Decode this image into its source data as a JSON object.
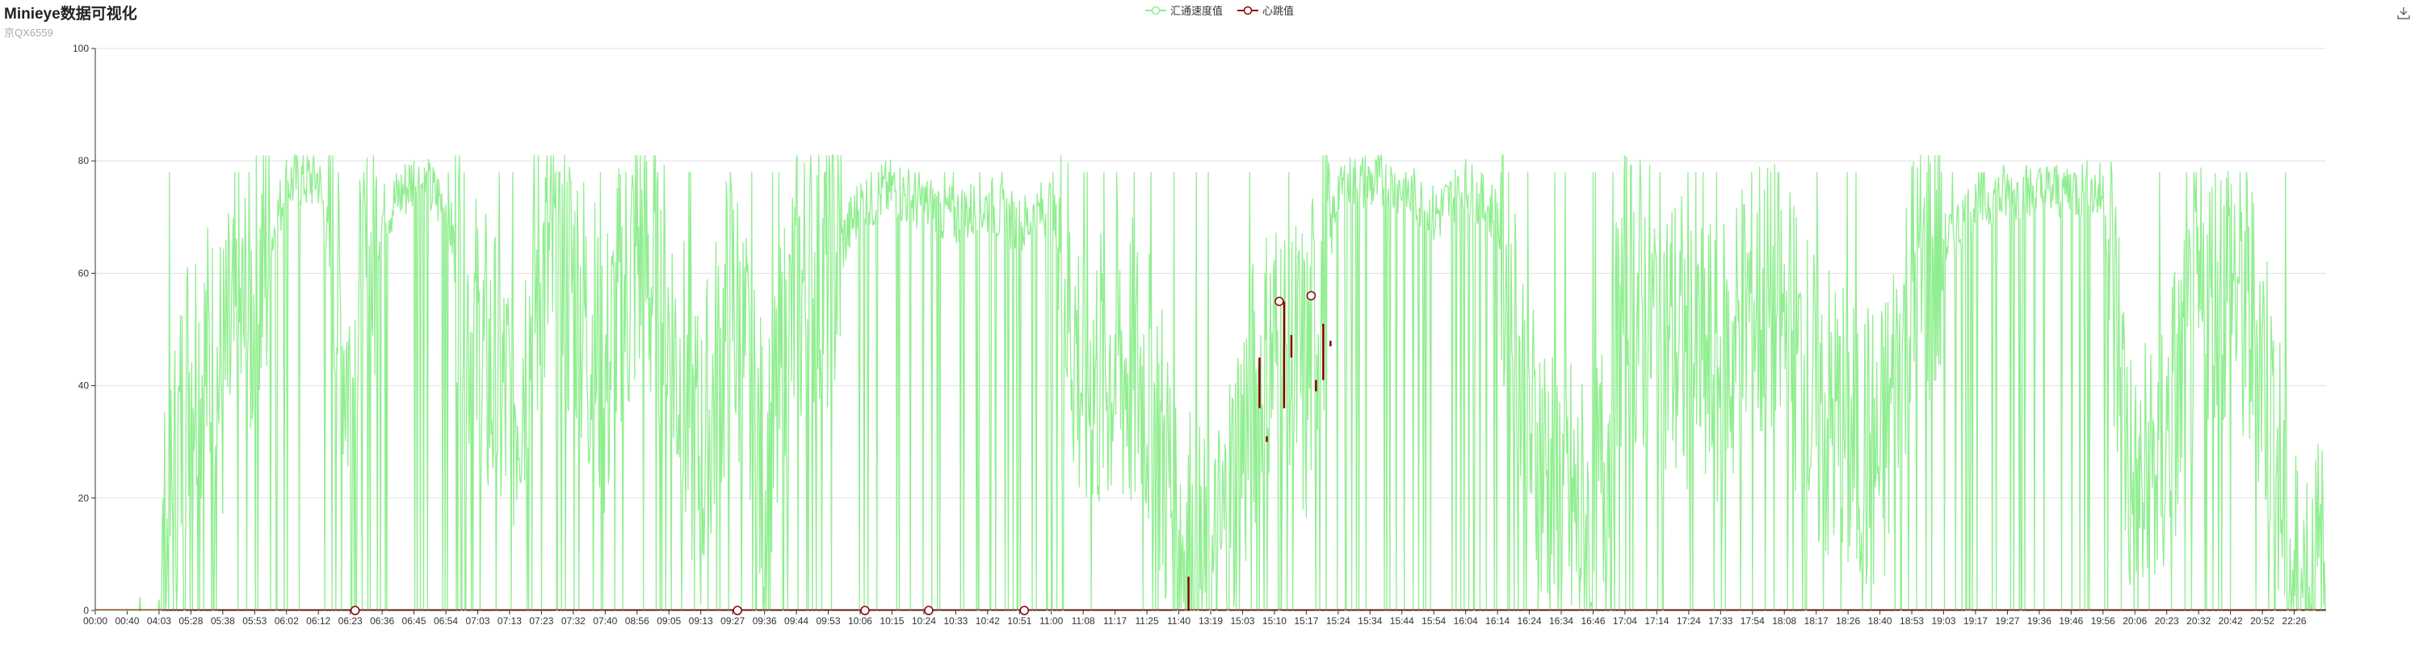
{
  "header": {
    "title": "Minieye数据可视化",
    "subtitle": "京QX6559"
  },
  "legend": {
    "items": [
      {
        "label": "汇通速度值",
        "color": "#90ee90",
        "icon": "hollow-circle-line-icon"
      },
      {
        "label": "心跳值",
        "color": "#8b0000",
        "icon": "hollow-circle-line-icon"
      }
    ]
  },
  "toolbar": {
    "download_icon": "download-icon"
  },
  "chart_data": {
    "type": "line",
    "title": "Minieye数据可视化",
    "subtitle": "京QX6559",
    "ylim": [
      0,
      100
    ],
    "yticks": [
      0,
      20,
      40,
      60,
      80,
      100
    ],
    "grid": true,
    "legend_position": "top-center",
    "xticks": [
      "00:00",
      "00:40",
      "04:03",
      "05:28",
      "05:38",
      "05:53",
      "06:02",
      "06:12",
      "06:23",
      "06:36",
      "06:45",
      "06:54",
      "07:03",
      "07:13",
      "07:23",
      "07:32",
      "07:40",
      "08:56",
      "09:05",
      "09:13",
      "09:27",
      "09:36",
      "09:44",
      "09:53",
      "10:06",
      "10:15",
      "10:24",
      "10:33",
      "10:42",
      "10:51",
      "11:00",
      "11:08",
      "11:17",
      "11:25",
      "11:40",
      "13:19",
      "15:03",
      "15:10",
      "15:17",
      "15:24",
      "15:34",
      "15:44",
      "15:54",
      "16:04",
      "16:14",
      "16:24",
      "16:34",
      "16:46",
      "17:04",
      "17:14",
      "17:24",
      "17:33",
      "17:54",
      "18:08",
      "18:17",
      "18:26",
      "18:40",
      "18:53",
      "19:03",
      "19:17",
      "19:27",
      "19:36",
      "19:46",
      "19:56",
      "20:06",
      "20:23",
      "20:32",
      "20:42",
      "20:52",
      "22:26"
    ],
    "series": [
      {
        "name": "汇通速度值",
        "color": "#90ee90",
        "profile": [
          {
            "x": "00:00",
            "y": 0
          },
          {
            "x": "00:40",
            "y": 0
          },
          {
            "x": "04:03",
            "y": 0
          },
          {
            "x": "05:28",
            "y": 45
          },
          {
            "x": "05:38",
            "y": 40
          },
          {
            "x": "05:53",
            "y": 55
          },
          {
            "x": "06:02",
            "y": 76
          },
          {
            "x": "06:12",
            "y": 77
          },
          {
            "x": "06:23",
            "y": 40
          },
          {
            "x": "06:36",
            "y": 70
          },
          {
            "x": "06:45",
            "y": 77
          },
          {
            "x": "06:54",
            "y": 72
          },
          {
            "x": "07:03",
            "y": 45
          },
          {
            "x": "07:13",
            "y": 35
          },
          {
            "x": "07:23",
            "y": 60
          },
          {
            "x": "07:32",
            "y": 58
          },
          {
            "x": "07:40",
            "y": 40
          },
          {
            "x": "08:56",
            "y": 65
          },
          {
            "x": "09:05",
            "y": 50
          },
          {
            "x": "09:13",
            "y": 25
          },
          {
            "x": "09:27",
            "y": 55
          },
          {
            "x": "09:36",
            "y": 20
          },
          {
            "x": "09:44",
            "y": 55
          },
          {
            "x": "09:53",
            "y": 60
          },
          {
            "x": "10:06",
            "y": 72
          },
          {
            "x": "10:15",
            "y": 75
          },
          {
            "x": "10:24",
            "y": 72
          },
          {
            "x": "10:33",
            "y": 70
          },
          {
            "x": "10:42",
            "y": 72
          },
          {
            "x": "10:51",
            "y": 68
          },
          {
            "x": "11:00",
            "y": 72
          },
          {
            "x": "11:08",
            "y": 40
          },
          {
            "x": "11:17",
            "y": 45
          },
          {
            "x": "11:25",
            "y": 40
          },
          {
            "x": "11:40",
            "y": 15
          },
          {
            "x": "13:19",
            "y": 0
          },
          {
            "x": "15:03",
            "y": 30
          },
          {
            "x": "15:10",
            "y": 45
          },
          {
            "x": "15:17",
            "y": 40
          },
          {
            "x": "15:24",
            "y": 75
          },
          {
            "x": "15:34",
            "y": 76
          },
          {
            "x": "15:44",
            "y": 75
          },
          {
            "x": "15:54",
            "y": 70
          },
          {
            "x": "16:04",
            "y": 75
          },
          {
            "x": "16:14",
            "y": 70
          },
          {
            "x": "16:24",
            "y": 30
          },
          {
            "x": "16:34",
            "y": 20
          },
          {
            "x": "16:46",
            "y": 10
          },
          {
            "x": "17:04",
            "y": 55
          },
          {
            "x": "17:14",
            "y": 50
          },
          {
            "x": "17:24",
            "y": 45
          },
          {
            "x": "17:33",
            "y": 40
          },
          {
            "x": "17:54",
            "y": 55
          },
          {
            "x": "18:08",
            "y": 50
          },
          {
            "x": "18:17",
            "y": 35
          },
          {
            "x": "18:26",
            "y": 30
          },
          {
            "x": "18:40",
            "y": 25
          },
          {
            "x": "18:53",
            "y": 55
          },
          {
            "x": "19:03",
            "y": 65
          },
          {
            "x": "19:17",
            "y": 72
          },
          {
            "x": "19:27",
            "y": 74
          },
          {
            "x": "19:36",
            "y": 74
          },
          {
            "x": "19:46",
            "y": 75
          },
          {
            "x": "19:56",
            "y": 74
          },
          {
            "x": "20:06",
            "y": 15
          },
          {
            "x": "20:23",
            "y": 30
          },
          {
            "x": "20:32",
            "y": 50
          },
          {
            "x": "20:42",
            "y": 60
          },
          {
            "x": "20:52",
            "y": 45
          },
          {
            "x": "22:26",
            "y": 3
          }
        ]
      },
      {
        "name": "心跳值",
        "color": "#8b0000",
        "points": [
          {
            "x": "06:23",
            "y": 0
          },
          {
            "x": "09:27",
            "y": 0
          },
          {
            "x": "10:06",
            "y": 0
          },
          {
            "x": "10:24",
            "y": 0
          },
          {
            "x": "10:51",
            "y": 0
          },
          {
            "x": "15:10",
            "y": 55
          },
          {
            "x": "15:17",
            "y": 56
          }
        ],
        "segments": [
          {
            "x": "11:40",
            "y_from": 0,
            "y_to": 6
          },
          {
            "x": "15:03",
            "y_from": 36,
            "y_to": 45
          },
          {
            "x": "15:03",
            "y_from": 30,
            "y_to": 31
          },
          {
            "x": "15:10",
            "y_from": 36,
            "y_to": 55
          },
          {
            "x": "15:10",
            "y_from": 45,
            "y_to": 49
          },
          {
            "x": "15:17",
            "y_from": 47,
            "y_to": 48
          },
          {
            "x": "15:17",
            "y_from": 39,
            "y_to": 41
          },
          {
            "x": "15:17",
            "y_from": 41,
            "y_to": 51
          }
        ]
      }
    ]
  }
}
